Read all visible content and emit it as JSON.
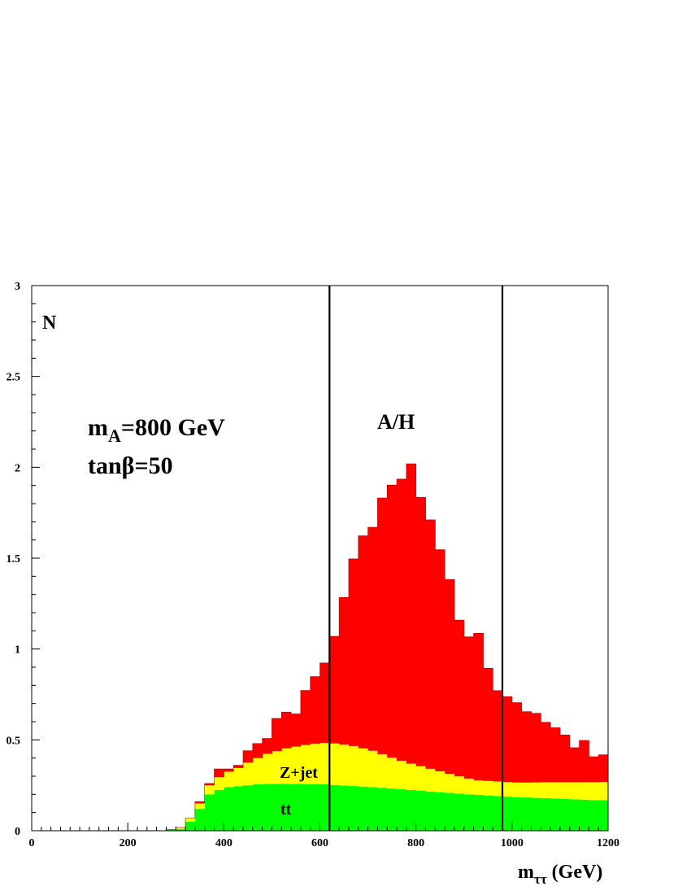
{
  "chart_data": {
    "type": "bar",
    "stacked": true,
    "x_bin_width": 20,
    "x_bin_starts": [
      0,
      20,
      40,
      60,
      80,
      100,
      120,
      140,
      160,
      180,
      200,
      220,
      240,
      260,
      280,
      300,
      320,
      340,
      360,
      380,
      400,
      420,
      440,
      460,
      480,
      500,
      520,
      540,
      560,
      580,
      600,
      620,
      640,
      660,
      680,
      700,
      720,
      740,
      760,
      780,
      800,
      820,
      840,
      860,
      880,
      900,
      920,
      940,
      960,
      980,
      1000,
      1020,
      1040,
      1060,
      1080,
      1100,
      1120,
      1140,
      1160,
      1180
    ],
    "series": [
      {
        "name": "tt",
        "color": "#00ff00",
        "values": [
          0,
          0,
          0,
          0,
          0,
          0,
          0,
          0,
          0,
          0,
          0,
          0,
          0,
          0,
          0.005,
          0.01,
          0.05,
          0.12,
          0.2,
          0.225,
          0.24,
          0.245,
          0.25,
          0.255,
          0.258,
          0.258,
          0.258,
          0.258,
          0.257,
          0.256,
          0.255,
          0.252,
          0.249,
          0.246,
          0.243,
          0.24,
          0.236,
          0.232,
          0.228,
          0.224,
          0.22,
          0.216,
          0.212,
          0.208,
          0.204,
          0.2,
          0.197,
          0.194,
          0.191,
          0.188,
          0.185,
          0.183,
          0.181,
          0.179,
          0.177,
          0.175,
          0.173,
          0.171,
          0.169,
          0.168
        ]
      },
      {
        "name": "Z+jet",
        "color": "#ffff00",
        "values": [
          0,
          0,
          0,
          0,
          0,
          0,
          0,
          0,
          0,
          0,
          0,
          0,
          0,
          0,
          0.002,
          0.008,
          0.02,
          0.03,
          0.05,
          0.07,
          0.085,
          0.1,
          0.125,
          0.145,
          0.165,
          0.18,
          0.195,
          0.205,
          0.215,
          0.222,
          0.228,
          0.228,
          0.225,
          0.22,
          0.21,
          0.2,
          0.185,
          0.17,
          0.157,
          0.145,
          0.135,
          0.125,
          0.115,
          0.105,
          0.095,
          0.087,
          0.08,
          0.08,
          0.08,
          0.08,
          0.08,
          0.082,
          0.085,
          0.088,
          0.09,
          0.092,
          0.094,
          0.096,
          0.098,
          0.1
        ]
      },
      {
        "name": "A/H",
        "color": "#ff0000",
        "values": [
          0,
          0,
          0,
          0,
          0,
          0,
          0,
          0,
          0,
          0,
          0,
          0,
          0,
          0,
          0,
          0,
          0,
          0.01,
          0.01,
          0.045,
          0.015,
          0.015,
          0.065,
          0.08,
          0.085,
          0.18,
          0.2,
          0.18,
          0.3,
          0.37,
          0.44,
          0.59,
          0.81,
          1.03,
          1.17,
          1.23,
          1.41,
          1.5,
          1.55,
          1.65,
          1.48,
          1.37,
          1.22,
          1.07,
          0.86,
          0.78,
          0.81,
          0.62,
          0.5,
          0.47,
          0.44,
          0.39,
          0.38,
          0.33,
          0.3,
          0.26,
          0.19,
          0.23,
          0.14,
          0.15
        ]
      }
    ],
    "xlim": [
      0,
      1200
    ],
    "ylim": [
      0,
      3
    ],
    "x_ticks": [
      "0",
      "200",
      "400",
      "600",
      "800",
      "1000",
      "1200"
    ],
    "y_ticks": [
      "0",
      "0.5",
      "1",
      "1.5",
      "2",
      "2.5",
      "3"
    ],
    "cut_lines": [
      620,
      980
    ],
    "xlabel": {
      "main": "m",
      "sub": "ττ",
      "rest": " (GeV)"
    },
    "ylabel": "N",
    "annotations": {
      "signal_label": "A/H",
      "mass_line": {
        "main": "m",
        "sub": "A",
        "rest": "=800 GeV"
      },
      "tanbeta_line": "tanβ=50",
      "zjet_label": "Z+jet",
      "tt_label": "tt"
    }
  }
}
